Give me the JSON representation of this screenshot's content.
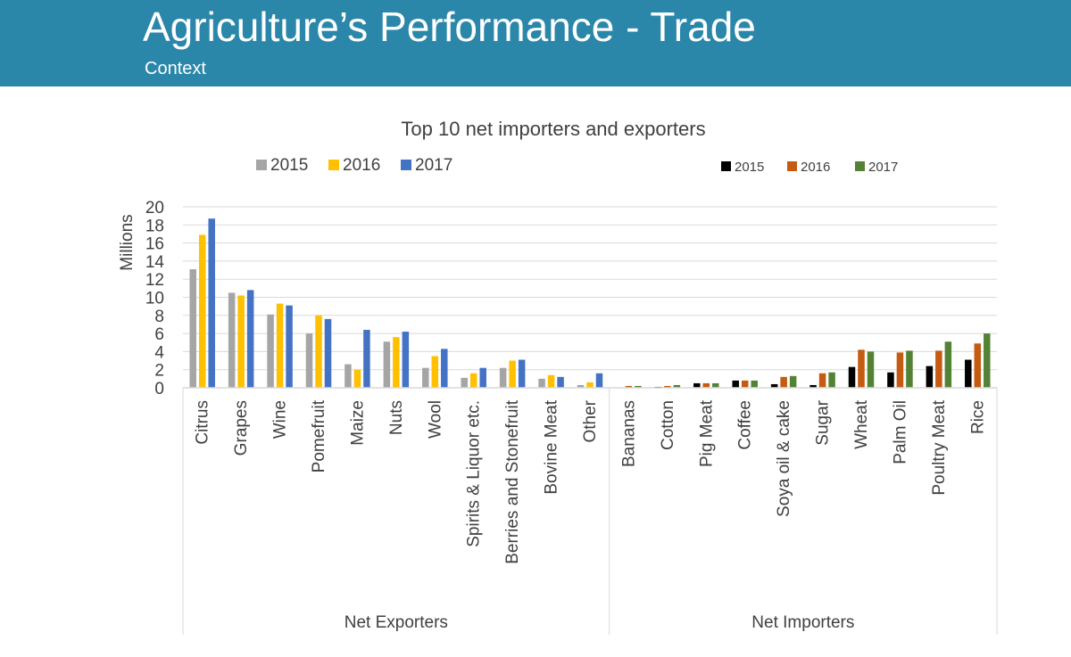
{
  "header": {
    "title": "Agriculture’s Performance - Trade",
    "subtitle": "Context"
  },
  "colors": {
    "header_bg": "#2a87a9",
    "exporters": {
      "2015": "#a5a5a5",
      "2016": "#ffc000",
      "2017": "#4472c4"
    },
    "importers": {
      "2015": "#000000",
      "2016": "#c55a11",
      "2017": "#548235"
    }
  },
  "chart_data": {
    "type": "bar",
    "title": "Top 10 net importers and exporters",
    "ylabel": "Millions",
    "ylim": [
      0,
      20
    ],
    "yticks": [
      0,
      2,
      4,
      6,
      8,
      10,
      12,
      14,
      16,
      18,
      20
    ],
    "grid": true,
    "legends": [
      {
        "entries": [
          "2015",
          "2016",
          "2017"
        ],
        "placement": "top-left"
      },
      {
        "entries": [
          "2015",
          "2016",
          "2017"
        ],
        "placement": "top-right"
      }
    ],
    "groups": [
      {
        "name": "Net Exporters",
        "categories": [
          "Citrus",
          "Grapes",
          "Wine",
          "Pomefruit",
          "Maize",
          "Nuts",
          "Wool",
          "Spirits & Liquor etc.",
          "Berries and Stonefruit",
          "Bovine Meat",
          "Other"
        ],
        "series": [
          {
            "name": "2015",
            "values": [
              13.1,
              10.5,
              8.1,
              6.0,
              2.6,
              5.1,
              2.2,
              1.1,
              2.2,
              1.0,
              0.3
            ]
          },
          {
            "name": "2016",
            "values": [
              16.9,
              10.2,
              9.3,
              8.0,
              2.0,
              5.6,
              3.5,
              1.6,
              3.0,
              1.4,
              0.6
            ]
          },
          {
            "name": "2017",
            "values": [
              18.7,
              10.8,
              9.1,
              7.6,
              6.4,
              6.2,
              4.3,
              2.2,
              3.1,
              1.2,
              1.6
            ]
          }
        ]
      },
      {
        "name": "Net Importers",
        "categories": [
          "Bananas",
          "Cotton",
          "Pig Meat",
          "Coffee",
          "Soya oil & cake",
          "Sugar",
          "Wheat",
          "Palm Oil",
          "Poultry Meat",
          "Rice"
        ],
        "series": [
          {
            "name": "2015",
            "values": [
              0.0,
              0.1,
              0.5,
              0.8,
              0.4,
              0.3,
              2.3,
              1.7,
              2.4,
              3.1
            ]
          },
          {
            "name": "2016",
            "values": [
              0.2,
              0.2,
              0.5,
              0.8,
              1.2,
              1.6,
              4.2,
              3.9,
              4.1,
              4.9
            ]
          },
          {
            "name": "2017",
            "values": [
              0.2,
              0.3,
              0.5,
              0.8,
              1.3,
              1.7,
              4.0,
              4.1,
              5.1,
              6.0
            ]
          }
        ]
      }
    ]
  }
}
